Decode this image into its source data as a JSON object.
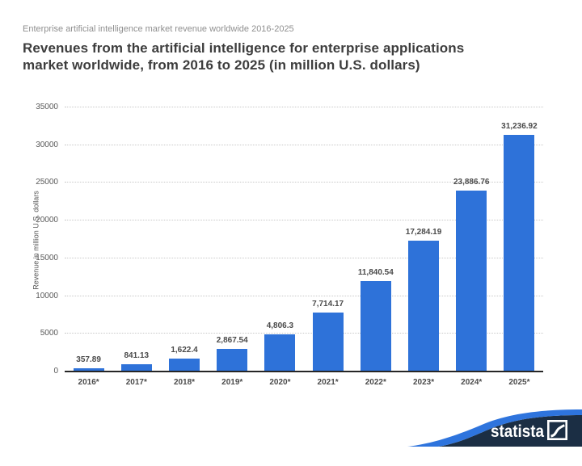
{
  "header": {
    "subtitle": "Enterprise artificial intelligence market revenue worldwide 2016-2025",
    "title_line1": "Revenues from the artificial intelligence for enterprise applications",
    "title_line2": "market worldwide, from 2016 to 2025 (in million U.S. dollars)"
  },
  "chart_data": {
    "type": "bar",
    "title": "Revenues from the artificial intelligence for enterprise applications market worldwide, from 2016 to 2025 (in million U.S. dollars)",
    "categories": [
      "2016*",
      "2017*",
      "2018*",
      "2019*",
      "2020*",
      "2021*",
      "2022*",
      "2023*",
      "2024*",
      "2025*"
    ],
    "values": [
      357.89,
      841.13,
      1622.4,
      2867.54,
      4806.3,
      7714.17,
      11840.54,
      17284.19,
      23886.76,
      31236.92
    ],
    "value_labels": [
      "357.89",
      "841.13",
      "1,622.4",
      "2,867.54",
      "4,806.3",
      "7,714.17",
      "11,840.54",
      "17,284.19",
      "23,886.76",
      "31,236.92"
    ],
    "xlabel": "",
    "ylabel": "Revenue in million U.S. dollars",
    "ylim": [
      0,
      35000
    ],
    "yticks": [
      0,
      5000,
      10000,
      15000,
      20000,
      25000,
      30000,
      35000
    ],
    "grid": "horizontal-dotted",
    "legend": "none",
    "bar_color": "#2e72d9"
  },
  "branding": {
    "logo_text": "statista",
    "navy": "#1b2e44",
    "blue": "#2e74dd"
  }
}
